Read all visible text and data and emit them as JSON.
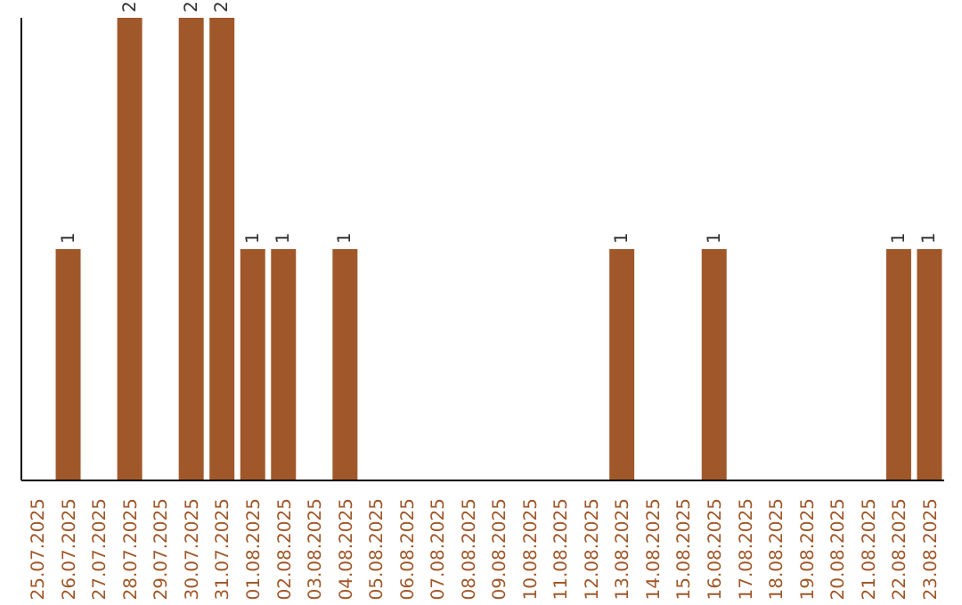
{
  "chart_data": {
    "type": "bar",
    "categories": [
      "25.07.2025",
      "26.07.2025",
      "27.07.2025",
      "28.07.2025",
      "29.07.2025",
      "30.07.2025",
      "31.07.2025",
      "01.08.2025",
      "02.08.2025",
      "03.08.2025",
      "04.08.2025",
      "05.08.2025",
      "06.08.2025",
      "07.08.2025",
      "08.08.2025",
      "09.08.2025",
      "10.08.2025",
      "11.08.2025",
      "12.08.2025",
      "13.08.2025",
      "14.08.2025",
      "15.08.2025",
      "16.08.2025",
      "17.08.2025",
      "18.08.2025",
      "19.08.2025",
      "20.08.2025",
      "21.08.2025",
      "22.08.2025",
      "23.08.2025"
    ],
    "values": [
      0,
      1,
      0,
      2,
      0,
      2,
      2,
      1,
      1,
      0,
      1,
      0,
      0,
      0,
      0,
      0,
      0,
      0,
      0,
      1,
      0,
      0,
      1,
      0,
      0,
      0,
      0,
      0,
      1,
      1
    ],
    "value_labels": [
      null,
      "1",
      null,
      "2",
      null,
      "2",
      "2",
      "1",
      "1",
      null,
      "1",
      null,
      null,
      null,
      null,
      null,
      null,
      null,
      null,
      "1",
      null,
      null,
      "1",
      null,
      null,
      null,
      null,
      null,
      "1",
      "1"
    ],
    "color": "#a0582a",
    "tick_labels": "x",
    "grid": false,
    "legend": false
  }
}
